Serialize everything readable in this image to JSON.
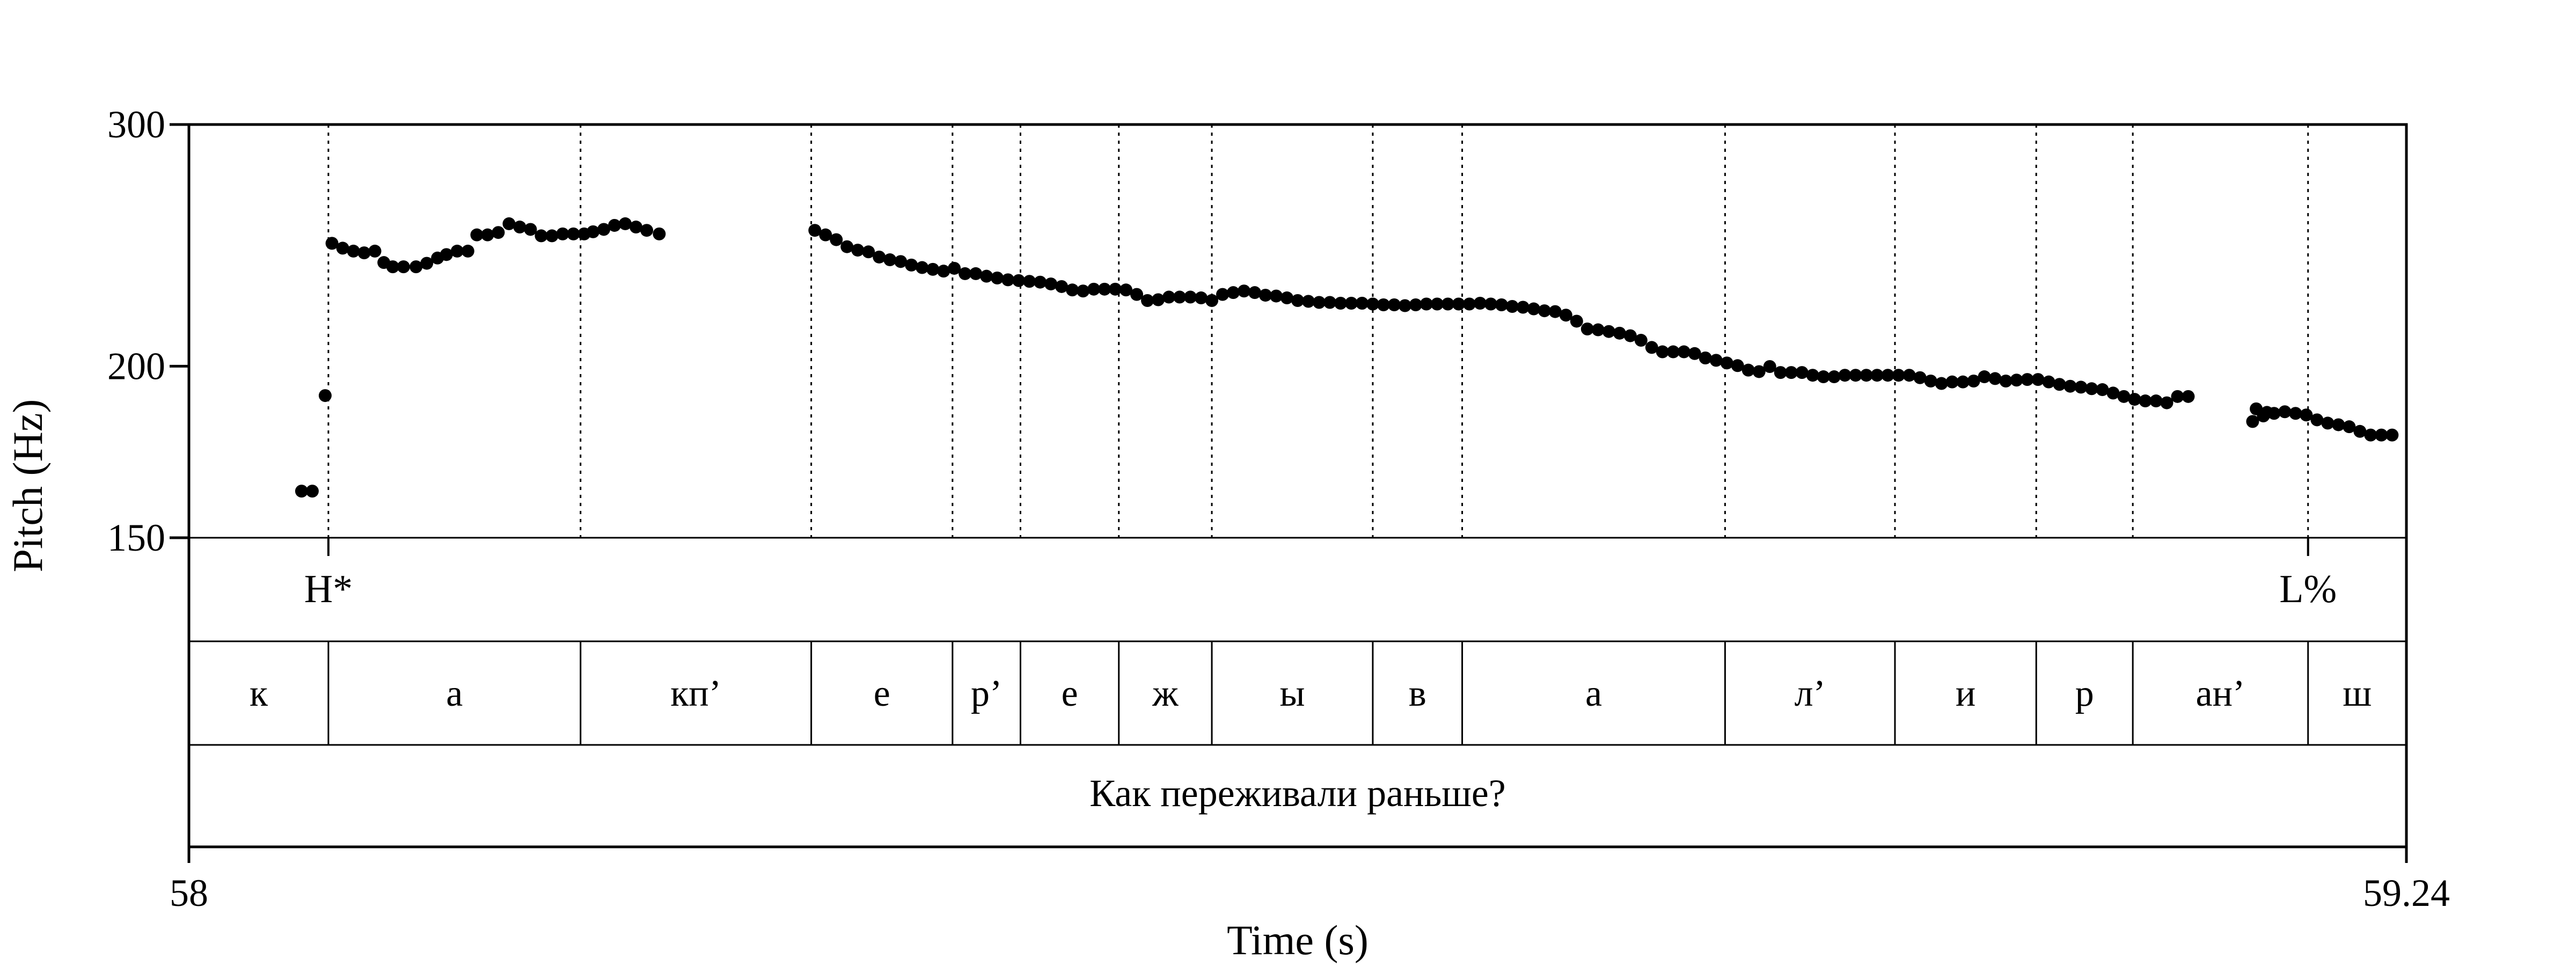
{
  "chart_data": {
    "type": "scatter",
    "title": "",
    "xlabel": "Time (s)",
    "ylabel": "Pitch (Hz)",
    "xlim": [
      58,
      59.24
    ],
    "ylim": [
      150,
      300
    ],
    "y_scale": "log",
    "grid": false,
    "x_tick_labels": [
      "58",
      "59.24"
    ],
    "y_tick_labels": [
      "150",
      "200",
      "300"
    ],
    "y_ticks": [
      150,
      200,
      300
    ],
    "marker_color": "#000000",
    "series": [
      {
        "points": [
          [
            58.063,
            162.2
          ],
          [
            58.069,
            162.2
          ],
          [
            58.0762,
            190.4
          ],
          [
            58.08,
            245.8
          ],
          [
            58.086,
            243.8
          ],
          [
            58.092,
            242.6
          ],
          [
            58.098,
            241.9
          ],
          [
            58.104,
            242.6
          ],
          [
            58.109,
            238.0
          ],
          [
            58.114,
            236.3
          ],
          [
            58.12,
            236.3
          ],
          [
            58.127,
            236.3
          ],
          [
            58.133,
            237.7
          ],
          [
            58.139,
            239.8
          ],
          [
            58.144,
            241.2
          ],
          [
            58.15,
            242.6
          ],
          [
            58.156,
            242.6
          ],
          [
            58.161,
            249.3
          ],
          [
            58.167,
            249.3
          ],
          [
            58.173,
            250.3
          ],
          [
            58.179,
            254.0
          ],
          [
            58.185,
            252.6
          ],
          [
            58.191,
            251.6
          ],
          [
            58.197,
            248.9
          ],
          [
            58.203,
            248.9
          ],
          [
            58.209,
            249.7
          ],
          [
            58.215,
            249.7
          ],
          [
            58.221,
            249.7
          ],
          [
            58.226,
            250.6
          ],
          [
            58.232,
            251.6
          ],
          [
            58.238,
            253.3
          ],
          [
            58.244,
            254.0
          ],
          [
            58.25,
            252.6
          ],
          [
            58.256,
            251.2
          ],
          [
            58.263,
            249.7
          ],
          [
            58.35,
            251.2
          ],
          [
            58.356,
            249.3
          ],
          [
            58.362,
            247.3
          ],
          [
            58.368,
            244.4
          ],
          [
            58.374,
            243.0
          ],
          [
            58.38,
            242.3
          ],
          [
            58.386,
            240.2
          ],
          [
            58.392,
            239.1
          ],
          [
            58.398,
            238.4
          ],
          [
            58.404,
            237.0
          ],
          [
            58.41,
            236.0
          ],
          [
            58.416,
            235.3
          ],
          [
            58.422,
            234.6
          ],
          [
            58.428,
            235.7
          ],
          [
            58.434,
            233.6
          ],
          [
            58.44,
            233.6
          ],
          [
            58.446,
            232.6
          ],
          [
            58.452,
            231.9
          ],
          [
            58.458,
            231.2
          ],
          [
            58.464,
            230.9
          ],
          [
            58.47,
            230.6
          ],
          [
            58.476,
            230.3
          ],
          [
            58.482,
            229.6
          ],
          [
            58.488,
            228.6
          ],
          [
            58.494,
            227.3
          ],
          [
            58.5,
            226.9
          ],
          [
            58.506,
            227.6
          ],
          [
            58.512,
            227.6
          ],
          [
            58.518,
            227.6
          ],
          [
            58.524,
            227.3
          ],
          [
            58.53,
            225.6
          ],
          [
            58.536,
            223.3
          ],
          [
            58.542,
            223.6
          ],
          [
            58.548,
            224.6
          ],
          [
            58.554,
            224.6
          ],
          [
            58.56,
            224.6
          ],
          [
            58.566,
            224.3
          ],
          [
            58.572,
            223.3
          ],
          [
            58.578,
            225.6
          ],
          [
            58.584,
            226.3
          ],
          [
            58.59,
            226.9
          ],
          [
            58.596,
            226.3
          ],
          [
            58.602,
            225.3
          ],
          [
            58.608,
            225.0
          ],
          [
            58.614,
            224.3
          ],
          [
            58.62,
            223.3
          ],
          [
            58.626,
            223.0
          ],
          [
            58.632,
            222.6
          ],
          [
            58.638,
            222.6
          ],
          [
            58.644,
            222.3
          ],
          [
            58.65,
            222.3
          ],
          [
            58.656,
            222.3
          ],
          [
            58.662,
            222.0
          ],
          [
            58.668,
            221.7
          ],
          [
            58.674,
            221.7
          ],
          [
            58.68,
            221.4
          ],
          [
            58.686,
            221.7
          ],
          [
            58.692,
            222.0
          ],
          [
            58.698,
            222.0
          ],
          [
            58.704,
            222.0
          ],
          [
            58.71,
            222.0
          ],
          [
            58.716,
            222.0
          ],
          [
            58.722,
            222.3
          ],
          [
            58.728,
            222.0
          ],
          [
            58.734,
            221.7
          ],
          [
            58.74,
            221.1
          ],
          [
            58.746,
            220.8
          ],
          [
            58.752,
            220.2
          ],
          [
            58.758,
            219.5
          ],
          [
            58.764,
            219.2
          ],
          [
            58.77,
            217.9
          ],
          [
            58.776,
            215.7
          ],
          [
            58.782,
            212.9
          ],
          [
            58.788,
            212.6
          ],
          [
            58.794,
            212.0
          ],
          [
            58.8,
            211.4
          ],
          [
            58.806,
            210.5
          ],
          [
            58.812,
            208.9
          ],
          [
            58.818,
            206.4
          ],
          [
            58.824,
            204.9
          ],
          [
            58.83,
            204.9
          ],
          [
            58.836,
            204.9
          ],
          [
            58.842,
            204.3
          ],
          [
            58.848,
            202.8
          ],
          [
            58.854,
            202.0
          ],
          [
            58.86,
            201.1
          ],
          [
            58.866,
            200.2
          ],
          [
            58.872,
            198.7
          ],
          [
            58.878,
            198.2
          ],
          [
            58.884,
            199.9
          ],
          [
            58.89,
            197.9
          ],
          [
            58.896,
            197.9
          ],
          [
            58.902,
            197.9
          ],
          [
            58.908,
            197.0
          ],
          [
            58.914,
            196.5
          ],
          [
            58.92,
            196.5
          ],
          [
            58.926,
            197.0
          ],
          [
            58.932,
            197.0
          ],
          [
            58.938,
            197.0
          ],
          [
            58.944,
            197.0
          ],
          [
            58.95,
            197.0
          ],
          [
            58.956,
            197.0
          ],
          [
            58.962,
            197.0
          ],
          [
            58.968,
            196.2
          ],
          [
            58.974,
            195.1
          ],
          [
            58.98,
            194.3
          ],
          [
            58.986,
            194.8
          ],
          [
            58.992,
            194.8
          ],
          [
            58.998,
            195.1
          ],
          [
            59.004,
            196.5
          ],
          [
            59.01,
            195.9
          ],
          [
            59.016,
            195.1
          ],
          [
            59.022,
            195.4
          ],
          [
            59.028,
            195.6
          ],
          [
            59.034,
            195.6
          ],
          [
            59.04,
            194.8
          ],
          [
            59.046,
            194.0
          ],
          [
            59.052,
            193.4
          ],
          [
            59.058,
            193.1
          ],
          [
            59.064,
            192.6
          ],
          [
            59.07,
            192.3
          ],
          [
            59.076,
            191.2
          ],
          [
            59.082,
            190.1
          ],
          [
            59.088,
            189.2
          ],
          [
            59.094,
            188.7
          ],
          [
            59.1,
            188.7
          ],
          [
            59.106,
            188.1
          ],
          [
            59.112,
            190.1
          ],
          [
            59.118,
            190.1
          ],
          [
            59.156,
            186.2
          ],
          [
            59.162,
            185.1
          ],
          [
            59.154,
            182.3
          ],
          [
            59.16,
            184.0
          ],
          [
            59.166,
            184.8
          ],
          [
            59.172,
            185.3
          ],
          [
            59.178,
            184.8
          ],
          [
            59.184,
            184.3
          ],
          [
            59.19,
            182.8
          ],
          [
            59.196,
            181.8
          ],
          [
            59.202,
            181.3
          ],
          [
            59.208,
            180.7
          ],
          [
            59.214,
            179.3
          ],
          [
            59.22,
            178.2
          ],
          [
            59.226,
            178.2
          ],
          [
            59.232,
            178.2
          ]
        ]
      }
    ],
    "intervals_1": {
      "label_points": [
        {
          "t": 58.078,
          "label": "H*"
        },
        {
          "t": 59.185,
          "label": "L%"
        }
      ]
    },
    "intervals_2": {
      "boundaries": [
        58.078,
        58.219,
        58.348,
        58.427,
        58.465,
        58.52,
        58.572,
        58.662,
        58.712,
        58.859,
        58.954,
        59.033,
        59.087,
        59.185
      ],
      "labels": [
        "к",
        "а",
        "кп’",
        "е",
        "р’",
        "е",
        "ж",
        "ы",
        "в",
        "а",
        "л’",
        "и",
        "р",
        "ан’",
        "ш"
      ]
    },
    "intervals_3": {
      "labels": [
        "Как переживали раньше?"
      ]
    }
  }
}
